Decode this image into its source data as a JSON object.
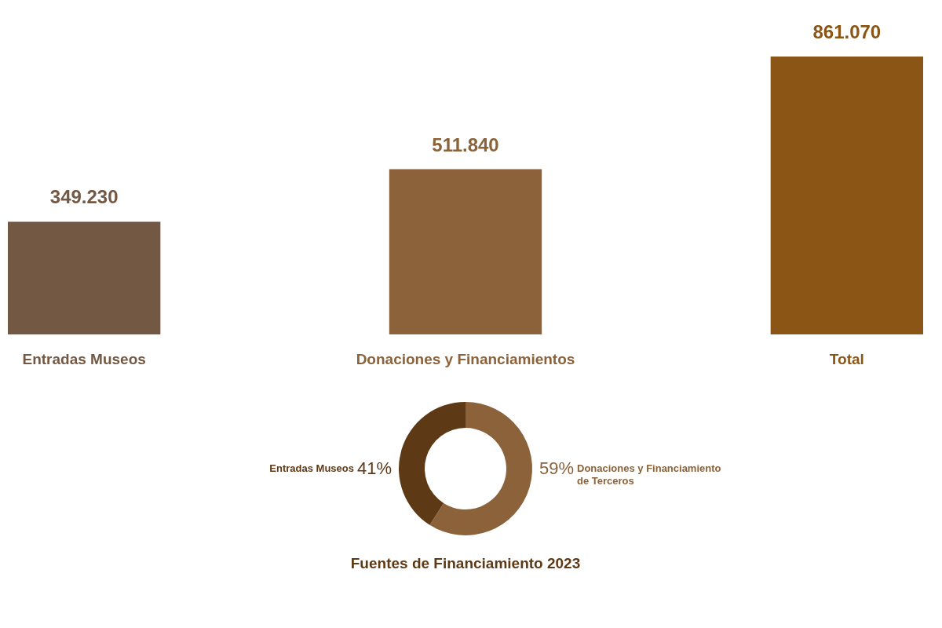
{
  "chart_data": [
    {
      "type": "bar",
      "categories": [
        "Entradas Museos",
        "Donaciones y Financiamientos",
        "Total"
      ],
      "values": [
        349230,
        511840,
        861070
      ],
      "colors": [
        "#735843",
        "#8b623a",
        "#8b5516"
      ],
      "value_labels": [
        "349.230",
        "511.840",
        "861.070"
      ],
      "grid": false
    },
    {
      "type": "donut",
      "title": "Fuentes de Financiamiento 2023",
      "categories": [
        "Donaciones y Financiamiento de Terceros",
        "Entradas Museos"
      ],
      "values": [
        59,
        41
      ],
      "colors": [
        "#8b623a",
        "#5e3915"
      ],
      "value_labels": [
        "59%",
        "41%"
      ]
    }
  ]
}
